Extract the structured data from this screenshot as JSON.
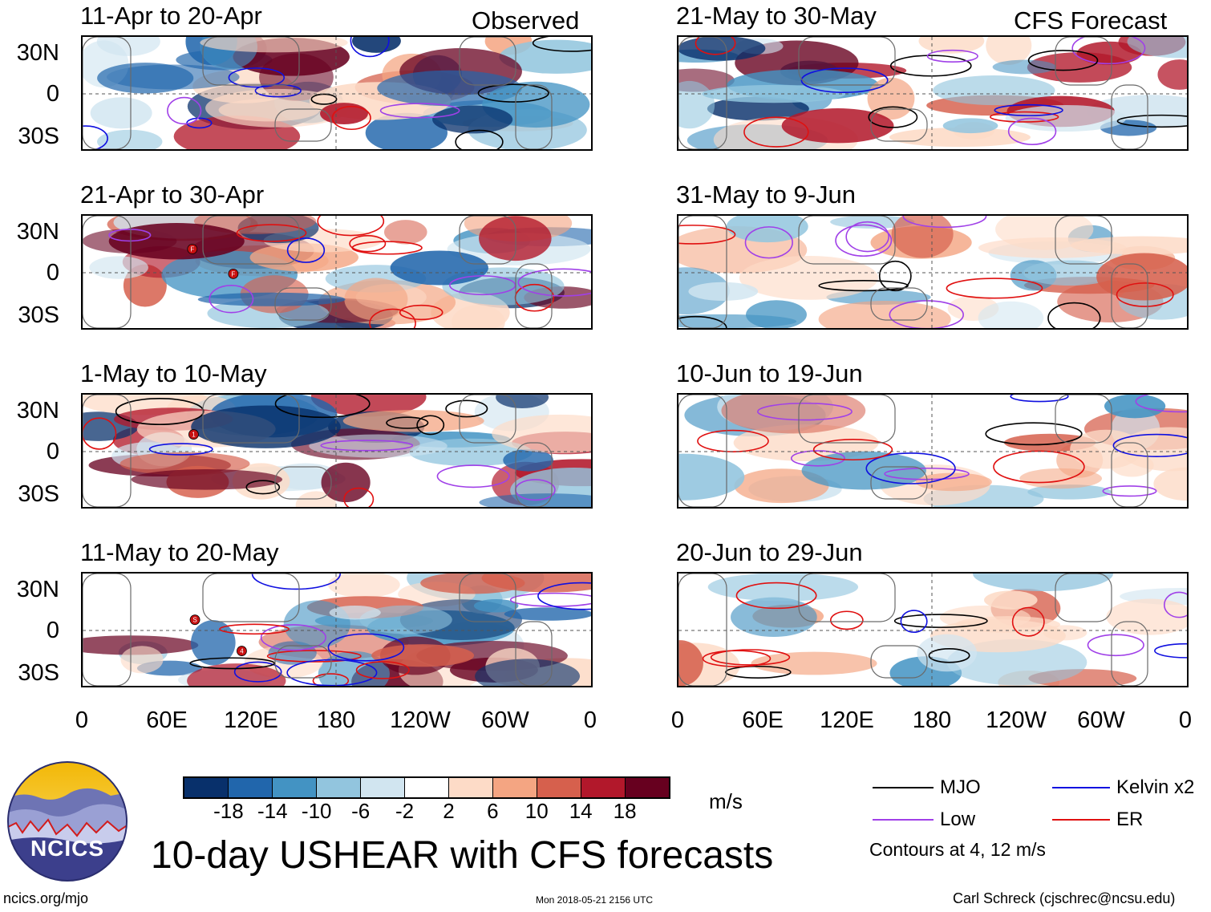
{
  "panels_observed": [
    {
      "title": "11-Apr to 20-Apr",
      "tag": "Observed",
      "storms": []
    },
    {
      "title": "21-Apr to 30-Apr",
      "tag": "",
      "storms": [
        "F",
        "F"
      ]
    },
    {
      "title": "1-May to 10-May",
      "tag": "",
      "storms": [
        "1"
      ]
    },
    {
      "title": "11-May to 20-May",
      "tag": "",
      "storms": [
        "S",
        "4"
      ]
    }
  ],
  "panels_forecast": [
    {
      "title": "21-May to 30-May",
      "tag": "CFS Forecast"
    },
    {
      "title": "31-May to 9-Jun",
      "tag": ""
    },
    {
      "title": "10-Jun to 19-Jun",
      "tag": ""
    },
    {
      "title": "20-Jun to 29-Jun",
      "tag": ""
    }
  ],
  "y_labels": [
    "30N",
    "0",
    "30S"
  ],
  "x_labels": [
    "0",
    "60E",
    "120E",
    "180",
    "120W",
    "60W",
    "0"
  ],
  "colorbar": {
    "colors": [
      "#08306b",
      "#2166ac",
      "#4393c3",
      "#92c5de",
      "#d1e5f0",
      "#ffffff",
      "#fddbc7",
      "#f4a582",
      "#d6604d",
      "#b2182b",
      "#67001f"
    ],
    "labels": [
      "-18",
      "-14",
      "-10",
      "-6",
      "-2",
      "2",
      "6",
      "10",
      "14",
      "18"
    ],
    "units": "m/s"
  },
  "legend": {
    "items": [
      {
        "label": "MJO",
        "color": "#000000"
      },
      {
        "label": "Kelvin x2",
        "color": "#1010e0"
      },
      {
        "label": "Low",
        "color": "#a040e8"
      },
      {
        "label": "ER",
        "color": "#e01010"
      }
    ],
    "note": "Contours at 4, 12 m/s"
  },
  "title": "10-day USHEAR with CFS forecasts",
  "logo_text": "NCICS",
  "footer": {
    "left": "ncics.org/mjo",
    "center": "Mon 2018-05-21 2156 UTC",
    "right": "Carl Schreck (cjschrec@ncsu.edu)"
  }
}
